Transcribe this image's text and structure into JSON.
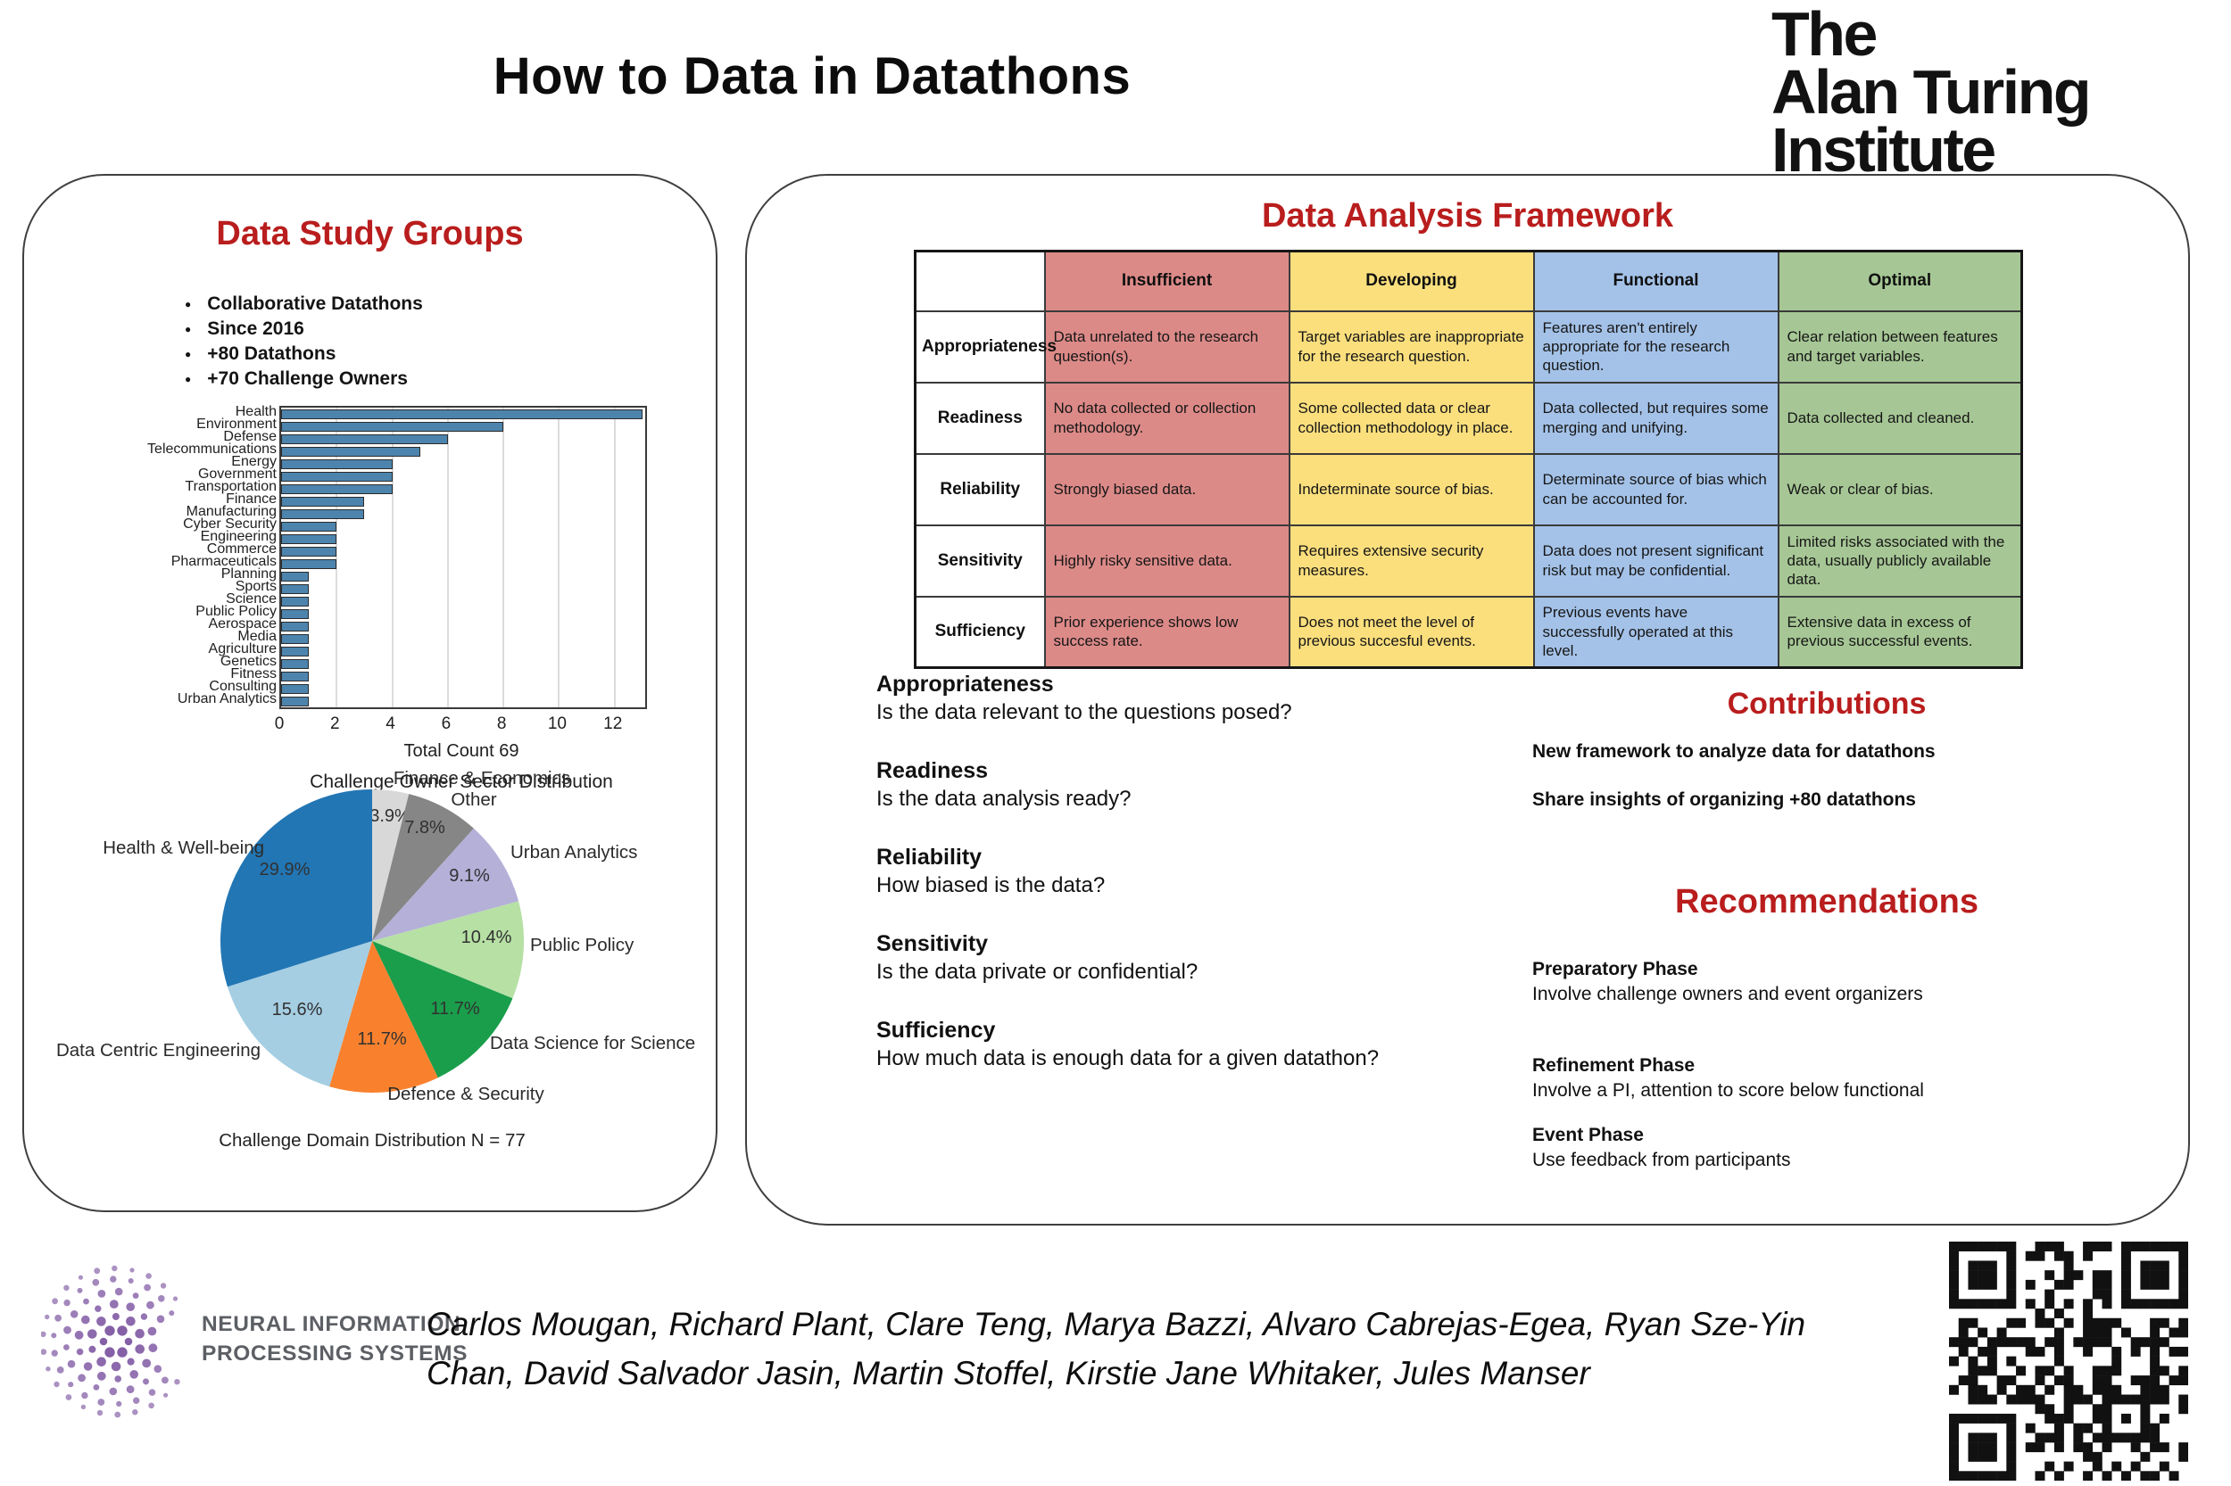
{
  "poster": {
    "title": "How to Data in Datathons",
    "accent_red": "#b91d1d",
    "turing_logo": {
      "line1": "The",
      "line2": "Alan Turing",
      "line3": "Institute"
    }
  },
  "left_panel": {
    "header": "Data Study Groups",
    "bullets": [
      "Collaborative Datathons",
      "Since 2016",
      "+80 Datathons",
      "+70 Challenge Owners"
    ]
  },
  "right_panel": {
    "header": "Data Analysis Framework",
    "framework_table": {
      "columns": [
        {
          "label": "Insufficient",
          "color": "#dc8a88"
        },
        {
          "label": "Developing",
          "color": "#fbdf7d"
        },
        {
          "label": "Functional",
          "color": "#a4c2e8"
        },
        {
          "label": "Optimal",
          "color": "#a6c795"
        }
      ],
      "rows": [
        {
          "name": "Appropriateness",
          "cells": [
            "Data unrelated to the research question(s).",
            "Target variables are inappropriate for the research question.",
            "Features aren't entirely appropriate for the research question.",
            "Clear relation between features and target variables."
          ]
        },
        {
          "name": "Readiness",
          "cells": [
            "No data collected or collection methodology.",
            "Some collected data or clear collection methodology in place.",
            "Data collected, but requires some merging and unifying.",
            "Data collected and cleaned."
          ]
        },
        {
          "name": "Reliability",
          "cells": [
            "Strongly biased data.",
            "Indeterminate source of bias.",
            "Determinate source of bias which can be accounted for.",
            "Weak or clear of bias."
          ]
        },
        {
          "name": "Sensitivity",
          "cells": [
            "Highly risky sensitive data.",
            "Requires extensive security measures.",
            "Data does not present significant risk but may be confidential.",
            "Limited risks associated with the data, usually publicly available data."
          ]
        },
        {
          "name": "Sufficiency",
          "cells": [
            "Prior experience shows low success rate.",
            "Does not meet the level of previous succesful events.",
            "Previous events have successfully operated at this level.",
            "Extensive data in excess of previous successful events."
          ]
        }
      ]
    },
    "definitions": [
      {
        "term": "Appropriateness",
        "question": "Is the data relevant to the questions posed?"
      },
      {
        "term": "Readiness",
        "question": "Is the data analysis ready?"
      },
      {
        "term": "Reliability",
        "question": "How biased is the data?"
      },
      {
        "term": "Sensitivity",
        "question": "Is the data private or confidential?"
      },
      {
        "term": "Sufficiency",
        "question": "How much data is enough data for a given datathon?"
      }
    ],
    "contributions": {
      "header": "Contributions",
      "items": [
        "New framework to analyze data for datathons",
        "Share insights of organizing +80 datathons"
      ]
    },
    "recommendations": {
      "header": "Recommendations",
      "items": [
        {
          "phase": "Preparatory Phase",
          "detail": "Involve challenge owners and event organizers"
        },
        {
          "phase": "Refinement Phase",
          "detail": "Involve a PI, attention to score below functional"
        },
        {
          "phase": "Event Phase",
          "detail": "Use feedback from participants"
        }
      ]
    }
  },
  "footer": {
    "neurips_line1": "NEURAL INFORMATION",
    "neurips_line2": "PROCESSING SYSTEMS",
    "neurips_purple": "#7e57a2",
    "authors": "Carlos Mougan, Richard Plant, Clare Teng, Marya Bazzi, Alvaro Cabrejas-Egea, Ryan Sze-Yin Chan, David Salvador Jasin, Martin Stoffel, Kirstie Jane Whitaker, Jules Manser"
  },
  "chart_data": [
    {
      "type": "bar",
      "orientation": "horizontal",
      "title": "Challenge Owner Sector Distribution",
      "xlabel": "Total Count 69",
      "ylabel": "",
      "categories": [
        "Health",
        "Environment",
        "Defense",
        "Telecommunications",
        "Energy",
        "Government",
        "Transportation",
        "Finance",
        "Manufacturing",
        "Cyber Security",
        "Engineering",
        "Commerce",
        "Pharmaceuticals",
        "Planning",
        "Sports",
        "Science",
        "Public Policy",
        "Aerospace",
        "Media",
        "Agriculture",
        "Genetics",
        "Fitness",
        "Consulting",
        "Urban Analytics"
      ],
      "values": [
        13,
        8,
        6,
        5,
        4,
        4,
        4,
        3,
        3,
        2,
        2,
        2,
        2,
        1,
        1,
        1,
        1,
        1,
        1,
        1,
        1,
        1,
        1,
        1
      ],
      "xlim": [
        0,
        13.1
      ],
      "xticks": [
        0,
        2,
        4,
        6,
        8,
        10,
        12
      ],
      "grid": true,
      "bar_color": "#4d84ad"
    },
    {
      "type": "pie",
      "title": "Challenge Domain Distribution N = 77",
      "start_angle": "top",
      "direction": "clockwise",
      "slices": [
        {
          "label": "Finance & Economics",
          "value": 3.9,
          "pct_label": "3.9%",
          "color": "#d8d8d8",
          "pct_x": 390,
          "pct_y": 69,
          "name_x": 493,
          "name_y": 27,
          "name_anchor": "middle"
        },
        {
          "label": "Other",
          "value": 7.8,
          "pct_label": "7.8%",
          "color": "#868686",
          "pct_x": 429,
          "pct_y": 82,
          "name_x": 484,
          "name_y": 51,
          "name_anchor": "middle"
        },
        {
          "label": "Urban Analytics",
          "value": 9.1,
          "pct_label": "9.1%",
          "color": "#b4b0d8",
          "pct_x": 479,
          "pct_y": 136,
          "name_x": 525,
          "name_y": 110,
          "name_anchor": "start"
        },
        {
          "label": "Public Policy",
          "value": 10.4,
          "pct_label": "10.4%",
          "color": "#b7e0a5",
          "pct_x": 498,
          "pct_y": 205,
          "name_x": 547,
          "name_y": 214,
          "name_anchor": "start"
        },
        {
          "label": "Data Science for Science",
          "value": 11.7,
          "pct_label": "11.7%",
          "color": "#1a9e4b",
          "pct_x": 463,
          "pct_y": 285,
          "name_x": 502,
          "name_y": 324,
          "name_anchor": "start"
        },
        {
          "label": "Defence & Security",
          "value": 11.7,
          "pct_label": "11.7%",
          "color": "#f9812e",
          "pct_x": 381,
          "pct_y": 319,
          "name_x": 475,
          "name_y": 381,
          "name_anchor": "middle"
        },
        {
          "label": "Data Centric Engineering",
          "value": 15.6,
          "pct_label": "15.6%",
          "color": "#a5cee3",
          "pct_x": 286,
          "pct_y": 286,
          "name_x": 245,
          "name_y": 332,
          "name_anchor": "end"
        },
        {
          "label": "Health & Well-being",
          "value": 29.9,
          "pct_label": "29.9%",
          "color": "#2276b4",
          "pct_x": 272,
          "pct_y": 129,
          "name_x": 249,
          "name_y": 105,
          "name_anchor": "end"
        }
      ]
    }
  ]
}
